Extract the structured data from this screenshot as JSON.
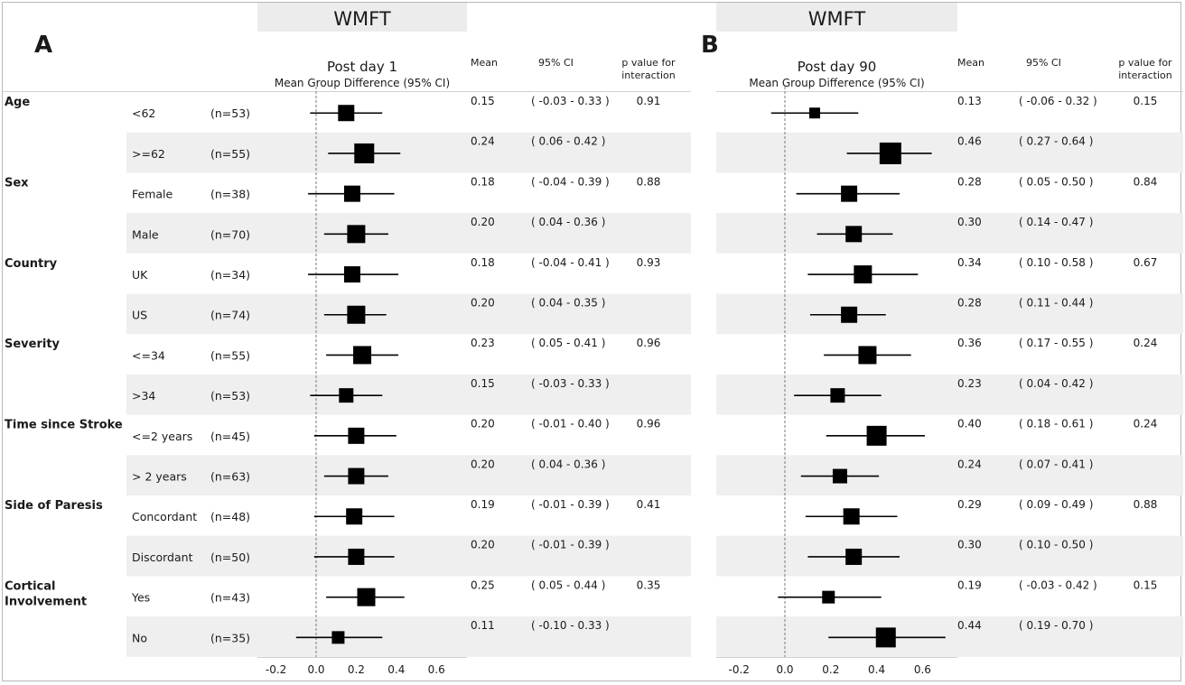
{
  "chart_data": [
    {
      "panel_label": "A",
      "type": "forest",
      "title": "WMFT",
      "subtitle": "Post day 1",
      "axis_label": "Mean Group Difference (95% CI)",
      "column_headers": {
        "mean": "Mean",
        "ci": "95% CI",
        "p": "p value for interaction"
      },
      "xlim": [
        -0.3,
        0.7
      ],
      "xticks": [
        -0.2,
        0.0,
        0.2,
        0.4,
        0.6
      ],
      "xtick_labels": [
        "-0.2",
        "0.0",
        "0.2",
        "0.4",
        "0.6"
      ],
      "reference_line": 0,
      "rows": [
        {
          "group": "Age",
          "subgroup": "<62",
          "n": "(n=53)",
          "mean": 0.15,
          "lower": -0.03,
          "upper": 0.33,
          "mean_label": "0.15",
          "ci_label": "( -0.03 - 0.33 )",
          "p": "0.91",
          "marker_size": 9
        },
        {
          "group": "",
          "subgroup": ">=62",
          "n": "(n=55)",
          "mean": 0.24,
          "lower": 0.06,
          "upper": 0.42,
          "mean_label": "0.24",
          "ci_label": "( 0.06 - 0.42 )",
          "p": "",
          "marker_size": 11
        },
        {
          "group": "Sex",
          "subgroup": "Female",
          "n": "(n=38)",
          "mean": 0.18,
          "lower": -0.04,
          "upper": 0.39,
          "mean_label": "0.18",
          "ci_label": "( -0.04 - 0.39 )",
          "p": "0.88",
          "marker_size": 9
        },
        {
          "group": "",
          "subgroup": "Male",
          "n": "(n=70)",
          "mean": 0.2,
          "lower": 0.04,
          "upper": 0.36,
          "mean_label": "0.20",
          "ci_label": "( 0.04 - 0.36 )",
          "p": "",
          "marker_size": 10
        },
        {
          "group": "Country",
          "subgroup": "UK",
          "n": "(n=34)",
          "mean": 0.18,
          "lower": -0.04,
          "upper": 0.41,
          "mean_label": "0.18",
          "ci_label": "( -0.04 - 0.41 )",
          "p": "0.93",
          "marker_size": 9
        },
        {
          "group": "",
          "subgroup": "US",
          "n": "(n=74)",
          "mean": 0.2,
          "lower": 0.04,
          "upper": 0.35,
          "mean_label": "0.20",
          "ci_label": "( 0.04 - 0.35 )",
          "p": "",
          "marker_size": 10
        },
        {
          "group": "Severity",
          "subgroup": "<=34",
          "n": "(n=55)",
          "mean": 0.23,
          "lower": 0.05,
          "upper": 0.41,
          "mean_label": "0.23",
          "ci_label": "( 0.05 - 0.41 )",
          "p": "0.96",
          "marker_size": 10
        },
        {
          "group": "",
          "subgroup": ">34",
          "n": "(n=53)",
          "mean": 0.15,
          "lower": -0.03,
          "upper": 0.33,
          "mean_label": "0.15",
          "ci_label": "( -0.03 - 0.33 )",
          "p": "",
          "marker_size": 8
        },
        {
          "group": "Time since Stroke",
          "subgroup": "<=2 years",
          "n": "(n=45)",
          "mean": 0.2,
          "lower": -0.01,
          "upper": 0.4,
          "mean_label": "0.20",
          "ci_label": "( -0.01 - 0.40 )",
          "p": "0.96",
          "marker_size": 9
        },
        {
          "group": "",
          "subgroup": "> 2 years",
          "n": "(n=63)",
          "mean": 0.2,
          "lower": 0.04,
          "upper": 0.36,
          "mean_label": "0.20",
          "ci_label": "( 0.04 - 0.36 )",
          "p": "",
          "marker_size": 9
        },
        {
          "group": "Side of Paresis",
          "subgroup": "Concordant",
          "n": "(n=48)",
          "mean": 0.19,
          "lower": -0.01,
          "upper": 0.39,
          "mean_label": "0.19",
          "ci_label": "( -0.01 - 0.39 )",
          "p": "0.41",
          "marker_size": 9
        },
        {
          "group": "",
          "subgroup": "Discordant",
          "n": "(n=50)",
          "mean": 0.2,
          "lower": -0.01,
          "upper": 0.39,
          "mean_label": "0.20",
          "ci_label": "( -0.01 - 0.39 )",
          "p": "",
          "marker_size": 9
        },
        {
          "group": "Cortical Involvement",
          "subgroup": "Yes",
          "n": "(n=43)",
          "mean": 0.25,
          "lower": 0.05,
          "upper": 0.44,
          "mean_label": "0.25",
          "ci_label": "( 0.05 - 0.44 )",
          "p": "0.35",
          "marker_size": 10
        },
        {
          "group": "",
          "subgroup": "No",
          "n": "(n=35)",
          "mean": 0.11,
          "lower": -0.1,
          "upper": 0.33,
          "mean_label": "0.11",
          "ci_label": "( -0.10 - 0.33 )",
          "p": "",
          "marker_size": 7
        }
      ]
    },
    {
      "panel_label": "B",
      "type": "forest",
      "title": "WMFT",
      "subtitle": "Post day 90",
      "axis_label": "Mean Group Difference (95% CI)",
      "column_headers": {
        "mean": "Mean",
        "ci": "95% CI",
        "p": "p value for interaction"
      },
      "xlim": [
        -0.3,
        0.7
      ],
      "xticks": [
        -0.2,
        0.0,
        0.2,
        0.4,
        0.6
      ],
      "xtick_labels": [
        "-0.2",
        "0.0",
        "0.2",
        "0.4",
        "0.6"
      ],
      "reference_line": 0,
      "rows": [
        {
          "mean": 0.13,
          "lower": -0.06,
          "upper": 0.32,
          "mean_label": "0.13",
          "ci_label": "( -0.06 - 0.32 )",
          "p": "0.15",
          "marker_size": 6
        },
        {
          "mean": 0.46,
          "lower": 0.27,
          "upper": 0.64,
          "mean_label": "0.46",
          "ci_label": "( 0.27 - 0.64 )",
          "p": "",
          "marker_size": 12
        },
        {
          "mean": 0.28,
          "lower": 0.05,
          "upper": 0.5,
          "mean_label": "0.28",
          "ci_label": "( 0.05 - 0.50 )",
          "p": "0.84",
          "marker_size": 9
        },
        {
          "mean": 0.3,
          "lower": 0.14,
          "upper": 0.47,
          "mean_label": "0.30",
          "ci_label": "( 0.14 - 0.47 )",
          "p": "",
          "marker_size": 9
        },
        {
          "mean": 0.34,
          "lower": 0.1,
          "upper": 0.58,
          "mean_label": "0.34",
          "ci_label": "( 0.10 - 0.58 )",
          "p": "0.67",
          "marker_size": 10
        },
        {
          "mean": 0.28,
          "lower": 0.11,
          "upper": 0.44,
          "mean_label": "0.28",
          "ci_label": "( 0.11 - 0.44 )",
          "p": "",
          "marker_size": 9
        },
        {
          "mean": 0.36,
          "lower": 0.17,
          "upper": 0.55,
          "mean_label": "0.36",
          "ci_label": "( 0.17 - 0.55 )",
          "p": "0.24",
          "marker_size": 10
        },
        {
          "mean": 0.23,
          "lower": 0.04,
          "upper": 0.42,
          "mean_label": "0.23",
          "ci_label": "( 0.04 - 0.42 )",
          "p": "",
          "marker_size": 8
        },
        {
          "mean": 0.4,
          "lower": 0.18,
          "upper": 0.61,
          "mean_label": "0.40",
          "ci_label": "( 0.18 - 0.61 )",
          "p": "0.24",
          "marker_size": 11
        },
        {
          "mean": 0.24,
          "lower": 0.07,
          "upper": 0.41,
          "mean_label": "0.24",
          "ci_label": "( 0.07 - 0.41 )",
          "p": "",
          "marker_size": 8
        },
        {
          "mean": 0.29,
          "lower": 0.09,
          "upper": 0.49,
          "mean_label": "0.29",
          "ci_label": "( 0.09 - 0.49 )",
          "p": "0.88",
          "marker_size": 9
        },
        {
          "mean": 0.3,
          "lower": 0.1,
          "upper": 0.5,
          "mean_label": "0.30",
          "ci_label": "( 0.10 - 0.50 )",
          "p": "",
          "marker_size": 9
        },
        {
          "mean": 0.19,
          "lower": -0.03,
          "upper": 0.42,
          "mean_label": "0.19",
          "ci_label": "( -0.03 - 0.42 )",
          "p": "0.15",
          "marker_size": 7
        },
        {
          "mean": 0.44,
          "lower": 0.19,
          "upper": 0.7,
          "mean_label": "0.44",
          "ci_label": "( 0.19 - 0.70 )",
          "p": "",
          "marker_size": 11
        }
      ]
    }
  ],
  "colors": {
    "band": "#efefef",
    "title_bg": "#ececec",
    "marker": "#000000",
    "refline": "#7a7a7a"
  }
}
